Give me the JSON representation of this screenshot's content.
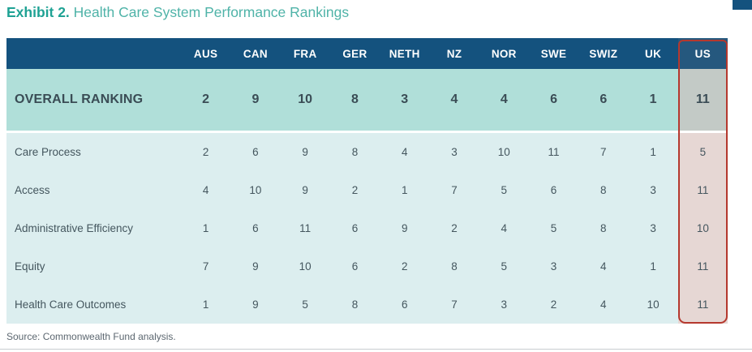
{
  "title": {
    "exhibit": "Exhibit 2.",
    "rest": " Health Care System Performance Rankings"
  },
  "footer": {
    "source": "Source: Commonwealth Fund analysis."
  },
  "colors": {
    "header_bg": "#14527E",
    "us_header_bg": "#25587E",
    "overall_bg": "#B0DFD9",
    "us_overall_bg": "#C3CAC6",
    "body_bg": "#DCEEEF",
    "us_body_bg": "#E6D7D4",
    "us_border": "#B5382E",
    "title_exhibit": "#1FA294",
    "title_rest": "#4FB3A8"
  },
  "chart_data": {
    "type": "table",
    "title": "Exhibit 2. Health Care System Performance Rankings",
    "columns": [
      "AUS",
      "CAN",
      "FRA",
      "GER",
      "NETH",
      "NZ",
      "NOR",
      "SWE",
      "SWIZ",
      "UK",
      "US"
    ],
    "overall_row": {
      "label": "OVERALL RANKING",
      "values": [
        2,
        9,
        10,
        8,
        3,
        4,
        4,
        6,
        6,
        1,
        11
      ]
    },
    "rows": [
      {
        "label": "Care Process",
        "values": [
          2,
          6,
          9,
          8,
          4,
          3,
          10,
          11,
          7,
          1,
          5
        ]
      },
      {
        "label": "Access",
        "values": [
          4,
          10,
          9,
          2,
          1,
          7,
          5,
          6,
          8,
          3,
          11
        ]
      },
      {
        "label": "Administrative Efficiency",
        "values": [
          1,
          6,
          11,
          6,
          9,
          2,
          4,
          5,
          8,
          3,
          10
        ]
      },
      {
        "label": "Equity",
        "values": [
          7,
          9,
          10,
          6,
          2,
          8,
          5,
          3,
          4,
          1,
          11
        ]
      },
      {
        "label": "Health Care Outcomes",
        "values": [
          1,
          9,
          5,
          8,
          6,
          7,
          3,
          2,
          4,
          10,
          11
        ]
      }
    ],
    "highlighted_column": "US",
    "source": "Source: Commonwealth Fund analysis."
  }
}
